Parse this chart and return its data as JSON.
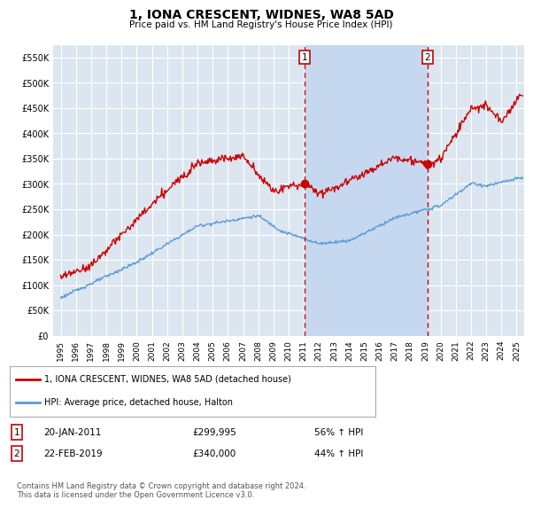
{
  "title": "1, IONA CRESCENT, WIDNES, WA8 5AD",
  "subtitle": "Price paid vs. HM Land Registry's House Price Index (HPI)",
  "ylim": [
    0,
    575000
  ],
  "xlim_start": 1994.5,
  "xlim_end": 2025.5,
  "background_color": "#ffffff",
  "plot_background": "#dce6f0",
  "plot_background_highlight": "#c5d8f0",
  "grid_color": "#ffffff",
  "red_line_color": "#cc0000",
  "blue_line_color": "#5b9bd5",
  "vline_color": "#cc0000",
  "transaction1_x": 2011.05,
  "transaction1_y": 299995,
  "transaction2_x": 2019.13,
  "transaction2_y": 340000,
  "legend_red": "1, IONA CRESCENT, WIDNES, WA8 5AD (detached house)",
  "legend_blue": "HPI: Average price, detached house, Halton",
  "annot1_date": "20-JAN-2011",
  "annot1_price": "£299,995",
  "annot1_hpi": "56% ↑ HPI",
  "annot2_date": "22-FEB-2019",
  "annot2_price": "£340,000",
  "annot2_hpi": "44% ↑ HPI",
  "footer": "Contains HM Land Registry data © Crown copyright and database right 2024.\nThis data is licensed under the Open Government Licence v3.0.",
  "xtick_years": [
    1995,
    1996,
    1997,
    1998,
    1999,
    2000,
    2001,
    2002,
    2003,
    2004,
    2005,
    2006,
    2007,
    2008,
    2009,
    2010,
    2011,
    2012,
    2013,
    2014,
    2015,
    2016,
    2017,
    2018,
    2019,
    2020,
    2021,
    2022,
    2023,
    2024,
    2025
  ]
}
